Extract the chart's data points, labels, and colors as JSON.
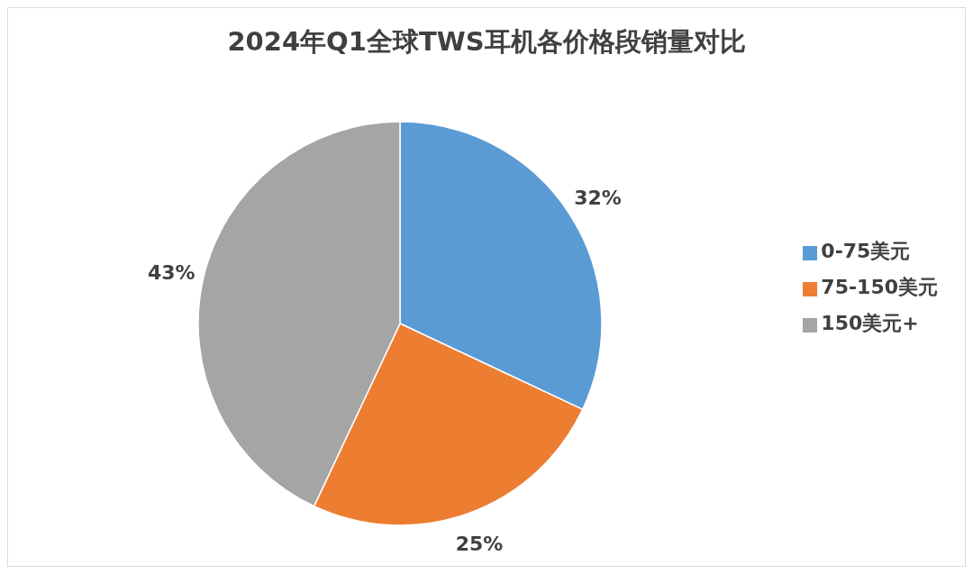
{
  "chart_data": {
    "type": "pie",
    "title": "2024年Q1全球TWS耳机各价格段销量对比",
    "categories": [
      "0-75美元",
      "75-150美元",
      "150美元+"
    ],
    "values": [
      32,
      25,
      43
    ],
    "colors": [
      "#5b9bd5",
      "#ed7d31",
      "#a5a5a5"
    ],
    "value_labels": [
      "32%",
      "25%",
      "43%"
    ],
    "legend": "right"
  }
}
